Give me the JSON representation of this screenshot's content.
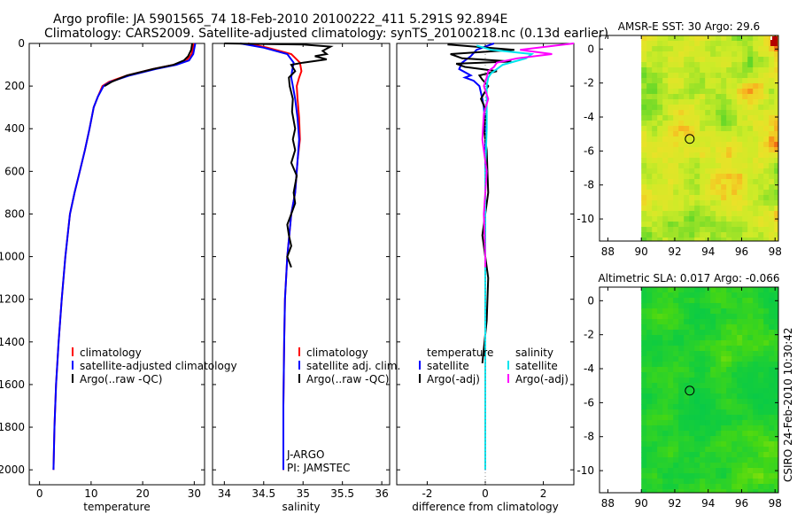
{
  "header": {
    "title_line1": "Argo profile: JA 5901565_74 18-Feb-2010 20100222_411 5.291S 92.894E",
    "title_line2": "Climatology: CARS2009. Satellite-adjusted climatology: synTS_20100218.nc (0.13d earlier)"
  },
  "footer": {
    "stamp": "CSIRO 24-Feb-2010 10:30:42"
  },
  "colors": {
    "climatology": "#ff0000",
    "satellite": "#0000ff",
    "argo": "#000000",
    "satellite_sal": "#00e5ee",
    "argo_sal": "#ff00ff"
  },
  "chart_data": [
    {
      "id": "temperature",
      "type": "line",
      "title": "",
      "xlabel": "temperature",
      "ylabel": "",
      "xlim": [
        -2,
        32
      ],
      "ylim": [
        0,
        2070
      ],
      "y_inverted": true,
      "xticks": [
        0,
        10,
        20,
        30
      ],
      "yticks": [
        0,
        200,
        400,
        600,
        800,
        1000,
        1200,
        1400,
        1600,
        1800,
        2000
      ],
      "legend": [
        "climatology",
        "satellite-adjusted climatology",
        "Argo(..raw -QC)"
      ],
      "series": [
        {
          "name": "climatology",
          "color": "#ff0000",
          "x": [
            29.9,
            29.5,
            28.5,
            26,
            22,
            17,
            13.5,
            12.2,
            11.3,
            10.5,
            9.7,
            8.8,
            7.8,
            6.8,
            5.9,
            5.0,
            4.3,
            3.7,
            3.2,
            2.9,
            2.7
          ],
          "y": [
            0,
            50,
            80,
            100,
            120,
            150,
            180,
            200,
            250,
            300,
            400,
            500,
            600,
            700,
            800,
            1000,
            1200,
            1400,
            1600,
            1800,
            2000
          ]
        },
        {
          "name": "satellite-adjusted climatology",
          "color": "#0000ff",
          "x": [
            30.2,
            29.8,
            29,
            26.5,
            22.5,
            17.5,
            13.8,
            12.4,
            11.3,
            10.5,
            9.7,
            8.8,
            7.8,
            6.8,
            5.9,
            5.0,
            4.3,
            3.7,
            3.2,
            2.9,
            2.7
          ],
          "y": [
            0,
            50,
            80,
            100,
            120,
            150,
            180,
            200,
            250,
            300,
            400,
            500,
            600,
            700,
            800,
            1000,
            1200,
            1400,
            1600,
            1800,
            2000
          ]
        },
        {
          "name": "Argo(..raw -QC)",
          "color": "#000000",
          "x": [
            29.6,
            29.4,
            28.8,
            28,
            26,
            22,
            17,
            14,
            12.6
          ],
          "y": [
            0,
            30,
            60,
            80,
            100,
            120,
            150,
            180,
            200
          ]
        }
      ]
    },
    {
      "id": "salinity",
      "type": "line",
      "xlabel": "salinity",
      "xlim": [
        33.85,
        36.1
      ],
      "ylim": [
        0,
        2070
      ],
      "y_inverted": true,
      "xticks": [
        34,
        34.5,
        35,
        35.5,
        36
      ],
      "legend": [
        "climatology",
        "satellite adj. clim.",
        "Argo(..raw -QC)"
      ],
      "annotation": [
        "J-ARGO",
        "PI: JAMSTEC"
      ],
      "series": [
        {
          "name": "climatology",
          "color": "#ff0000",
          "x": [
            34.3,
            34.55,
            34.85,
            34.96,
            34.98,
            34.95,
            34.92,
            34.93,
            34.95,
            34.96,
            34.93,
            34.9,
            34.85,
            34.8,
            34.77,
            34.76,
            34.75,
            34.75
          ],
          "y": [
            0,
            20,
            50,
            90,
            130,
            160,
            200,
            260,
            350,
            450,
            550,
            700,
            800,
            1000,
            1200,
            1400,
            1700,
            2000
          ]
        },
        {
          "name": "satellite adj. clim.",
          "color": "#0000ff",
          "x": [
            34.2,
            34.5,
            34.8,
            34.88,
            34.86,
            34.85,
            34.87,
            34.9,
            34.93,
            34.95,
            34.93,
            34.9,
            34.85,
            34.8,
            34.77,
            34.76,
            34.75,
            34.75
          ],
          "y": [
            0,
            20,
            50,
            90,
            130,
            160,
            200,
            260,
            350,
            450,
            550,
            700,
            800,
            1000,
            1200,
            1400,
            1700,
            2000
          ]
        },
        {
          "name": "Argo(..raw -QC)",
          "color": "#000000",
          "x": [
            34.0,
            35.0,
            35.35,
            35.25,
            35.3,
            35.15,
            35.3,
            35.0,
            34.85,
            34.9,
            34.82,
            34.83,
            34.87,
            34.86,
            34.9,
            34.87,
            34.9,
            34.85,
            34.92,
            34.88,
            34.9,
            34.85,
            34.8,
            34.82,
            34.85,
            34.8,
            34.85
          ],
          "y": [
            0,
            5,
            15,
            35,
            50,
            60,
            75,
            90,
            100,
            130,
            160,
            200,
            260,
            320,
            400,
            450,
            500,
            560,
            620,
            700,
            750,
            800,
            850,
            900,
            950,
            1000,
            1050
          ]
        }
      ]
    },
    {
      "id": "difference",
      "type": "line",
      "xlabel": "difference from climatology",
      "xlim": [
        -3.05,
        3.05
      ],
      "ylim": [
        0,
        2070
      ],
      "y_inverted": true,
      "xticks": [
        -2,
        0,
        2
      ],
      "legend": [
        "temperature",
        "satellite",
        "Argo(-adj)",
        "salinity",
        "satellite",
        "Argo(-adj)"
      ],
      "series": [
        {
          "name": "satellite (temperature)",
          "color": "#0000ff",
          "x": [
            0.3,
            -0.3,
            -0.5,
            -0.8,
            -0.9,
            -0.5,
            -0.7,
            -0.4,
            -0.2,
            -0.1,
            -0.05,
            0,
            0,
            0,
            0,
            0
          ],
          "y": [
            0,
            30,
            60,
            90,
            120,
            150,
            160,
            175,
            200,
            260,
            300,
            400,
            600,
            1000,
            1500,
            2000
          ]
        },
        {
          "name": "Argo(-adj) (temperature)",
          "color": "#000000",
          "x": [
            -1.3,
            1.0,
            -1.2,
            -0.8,
            0.9,
            -1.0,
            -0.7,
            0.4,
            -0.2,
            -0.1,
            0.1,
            -0.15,
            0.05,
            -0.05,
            0.05,
            0.1,
            -0.1,
            0.1,
            0.05,
            -0.1
          ],
          "y": [
            5,
            30,
            50,
            70,
            85,
            95,
            110,
            130,
            150,
            170,
            200,
            260,
            320,
            400,
            500,
            700,
            900,
            1100,
            1300,
            1500
          ]
        },
        {
          "name": "satellite (salinity)",
          "color": "#00e5ee",
          "x": [
            -0.3,
            0.2,
            1.6,
            1.4,
            0.6,
            0.4,
            0.2,
            0.1,
            0.05,
            0.05,
            0.05,
            0.0,
            0.0,
            0.0,
            0.0,
            0.0
          ],
          "y": [
            10,
            30,
            50,
            70,
            100,
            120,
            140,
            160,
            200,
            260,
            400,
            600,
            800,
            1000,
            1500,
            2000
          ]
        },
        {
          "name": "Argo(-adj) (salinity)",
          "color": "#ff00ff",
          "x": [
            3.2,
            1.2,
            2.3,
            1.1,
            0.4,
            0.3,
            0.1,
            0.05,
            -0.05,
            0.1,
            -0.05,
            -0.1,
            0.05,
            -0.05,
            0.0,
            0.0
          ],
          "y": [
            0,
            30,
            50,
            70,
            90,
            110,
            130,
            160,
            200,
            260,
            330,
            450,
            600,
            800,
            1000,
            1050
          ]
        }
      ]
    },
    {
      "id": "sst-map",
      "type": "heatmap",
      "title": "AMSR-E SST: 30 Argo: 29.6",
      "xticks": [
        88,
        90,
        92,
        94,
        96,
        98
      ],
      "yticks": [
        0,
        -2,
        -4,
        -6,
        -8,
        -10
      ],
      "xlim": [
        87.5,
        98.2
      ],
      "ylim": [
        -11.3,
        0.8
      ],
      "marker": {
        "lon": 92.894,
        "lat": -5.291
      }
    },
    {
      "id": "sla-map",
      "type": "heatmap",
      "title": "Altimetric SLA: 0.017 Argo: -0.066",
      "xticks": [
        88,
        90,
        92,
        94,
        96,
        98
      ],
      "yticks": [
        0,
        -2,
        -4,
        -6,
        -8,
        -10
      ],
      "xlim": [
        87.5,
        98.2
      ],
      "ylim": [
        -11.3,
        0.8
      ],
      "marker": {
        "lon": 92.894,
        "lat": -5.291
      }
    }
  ]
}
